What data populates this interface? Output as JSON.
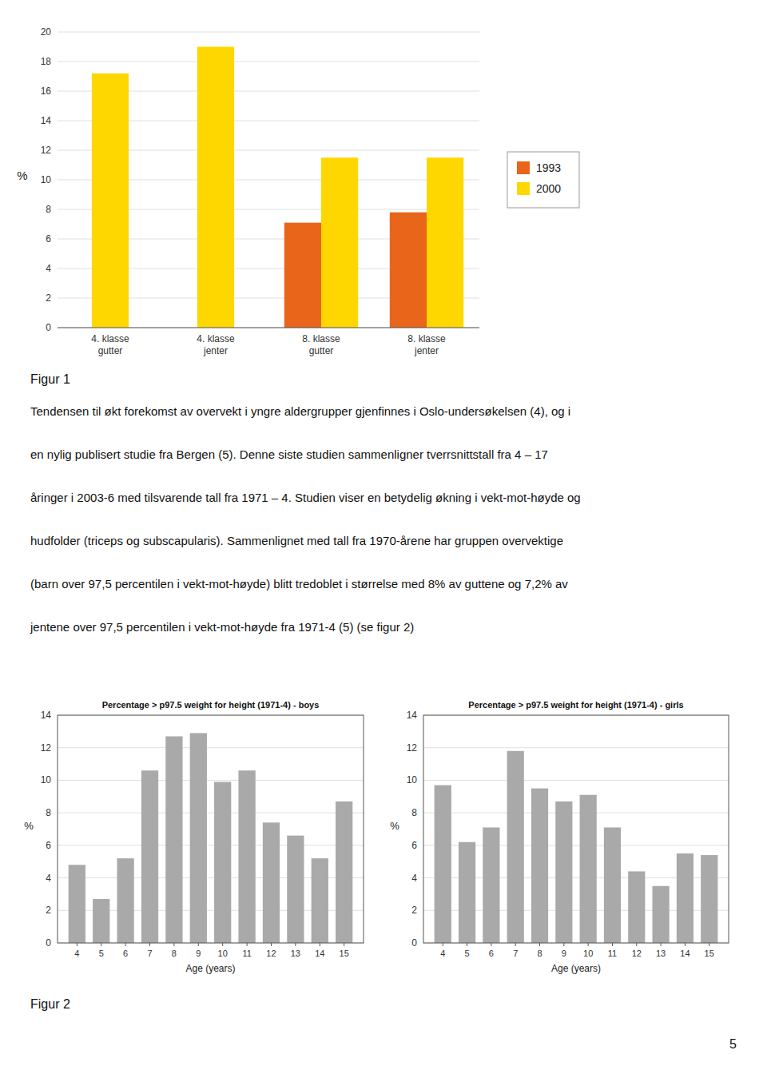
{
  "chart_data": [
    {
      "type": "bar",
      "categories": [
        "4. klasse\ngutter",
        "4. klasse\njenter",
        "8. klasse\ngutter",
        "8. klasse\njenter"
      ],
      "series": [
        {
          "name": "1993",
          "color": "#E8651A",
          "values": [
            null,
            null,
            7.1,
            7.8
          ]
        },
        {
          "name": "2000",
          "color": "#FFD700",
          "values": [
            17.2,
            19.0,
            11.5,
            11.5
          ]
        }
      ],
      "y_label": "%",
      "ylim": [
        0,
        20
      ],
      "yticks": [
        0,
        2,
        4,
        6,
        8,
        10,
        12,
        14,
        16,
        18,
        20
      ],
      "grid": true,
      "legend": "right"
    },
    {
      "type": "bar",
      "title": "Percentage > p97.5 weight for height (1971-4) - boys",
      "x_label": "Age (years)",
      "y_label": "%",
      "x": [
        4,
        5,
        6,
        7,
        8,
        9,
        10,
        11,
        12,
        13,
        14,
        15
      ],
      "values": [
        4.8,
        2.7,
        5.2,
        10.6,
        12.7,
        12.9,
        9.9,
        10.6,
        7.4,
        6.6,
        5.2,
        8.7
      ],
      "color": "#A9A9A9",
      "xlim": [
        3.2,
        15.8
      ],
      "xticks": [
        4,
        5,
        6,
        7,
        8,
        9,
        10,
        11,
        12,
        13,
        14,
        15
      ],
      "ylim": [
        0,
        14
      ],
      "yticks": [
        0,
        2,
        4,
        6,
        8,
        10,
        12,
        14
      ],
      "grid": true
    },
    {
      "type": "bar",
      "title": "Percentage > p97.5 weight for height (1971-4) - girls",
      "x_label": "Age (years)",
      "y_label": "%",
      "x": [
        4,
        5,
        6,
        7,
        8,
        9,
        10,
        11,
        12,
        13,
        14,
        15
      ],
      "values": [
        9.7,
        6.2,
        7.1,
        11.8,
        9.5,
        8.7,
        9.1,
        7.1,
        4.4,
        3.5,
        5.5,
        5.4
      ],
      "color": "#A9A9A9",
      "xlim": [
        3.2,
        15.8
      ],
      "xticks": [
        4,
        5,
        6,
        7,
        8,
        9,
        10,
        11,
        12,
        13,
        14,
        15
      ],
      "ylim": [
        0,
        14
      ],
      "yticks": [
        0,
        2,
        4,
        6,
        8,
        10,
        12,
        14
      ],
      "grid": true
    }
  ],
  "texts": {
    "figur1_label": "Figur 1",
    "paragraph": [
      "Tendensen til økt forekomst av overvekt i yngre aldergrupper gjenfinnes i Oslo-undersøkelsen (4), og i",
      "en nylig publisert studie fra Bergen (5). Denne siste studien sammenligner tverrsnittstall fra 4 – 17",
      "åringer i 2003-6 med tilsvarende tall fra 1971 – 4. Studien viser en betydelig økning i vekt-mot-høyde og",
      "hudfolder (triceps og subscapularis). Sammenlignet med tall fra 1970-årene har gruppen overvektige",
      "(barn over 97,5 percentilen i vekt-mot-høyde) blitt tredoblet i størrelse med 8% av guttene og 7,2% av",
      "jentene over 97,5 percentilen i vekt-mot-høyde fra 1971-4 (5) (se figur 2)"
    ],
    "figur2_label": "Figur 2",
    "page_number": "5"
  }
}
